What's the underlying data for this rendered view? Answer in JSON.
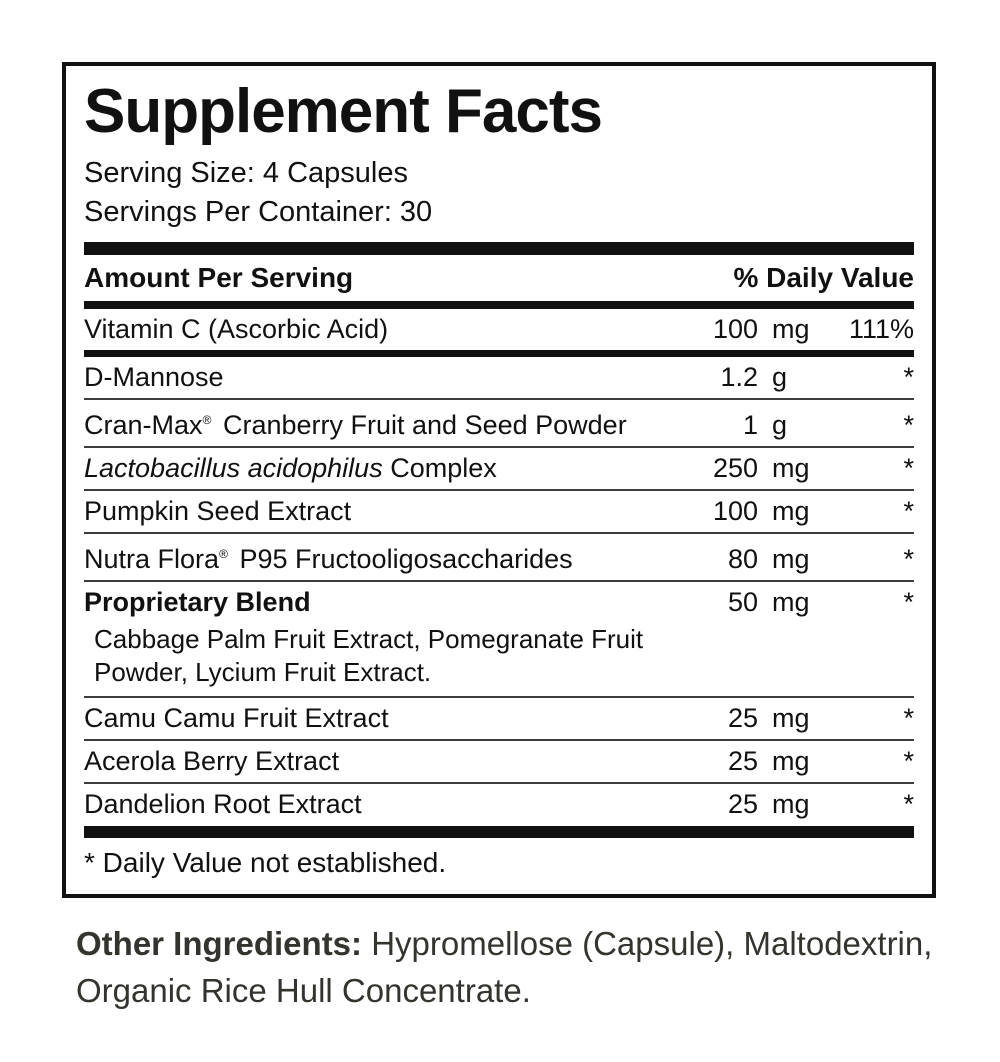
{
  "label": {
    "title": "Supplement Facts",
    "serving_size": "Serving Size: 4 Capsules",
    "servings_per_container": "Servings Per Container: 30",
    "columns": {
      "amount_header": "Amount Per Serving",
      "dv_header": "% Daily Value"
    },
    "rows": [
      {
        "segments": [
          {
            "text": "Vitamin C (Ascorbic Acid)"
          }
        ],
        "amount": "100",
        "unit": "mg",
        "dv": "111%",
        "divider_after": "thick"
      },
      {
        "segments": [
          {
            "text": "D-Mannose"
          }
        ],
        "amount": "1.2",
        "unit": "g",
        "dv": "*",
        "divider_after": "thin"
      },
      {
        "segments": [
          {
            "text": "Cran-Max"
          },
          {
            "text": "®",
            "style": "sup"
          },
          {
            "text": " Cranberry Fruit and Seed Powder"
          }
        ],
        "amount": "1",
        "unit": "g",
        "dv": "*",
        "divider_after": "thin"
      },
      {
        "segments": [
          {
            "text": "Lactobacillus acidophilus",
            "style": "italic"
          },
          {
            "text": " Complex"
          }
        ],
        "amount": "250",
        "unit": "mg",
        "dv": "*",
        "divider_after": "thin"
      },
      {
        "segments": [
          {
            "text": "Pumpkin Seed Extract"
          }
        ],
        "amount": "100",
        "unit": "mg",
        "dv": "*",
        "divider_after": "thin"
      },
      {
        "segments": [
          {
            "text": "Nutra Flora"
          },
          {
            "text": "®",
            "style": "sup"
          },
          {
            "text": " P95 Fructooligosaccharides"
          }
        ],
        "amount": "80",
        "unit": "mg",
        "dv": "*",
        "divider_after": "thin"
      },
      {
        "segments": [
          {
            "text": "Proprietary Blend",
            "style": "bold"
          }
        ],
        "amount": "50",
        "unit": "mg",
        "dv": "*",
        "components": "Cabbage Palm Fruit Extract, Pomegranate Fruit Powder, Lycium Fruit Extract.",
        "divider_after": "thin"
      },
      {
        "segments": [
          {
            "text": "Camu Camu Fruit Extract"
          }
        ],
        "amount": "25",
        "unit": "mg",
        "dv": "*",
        "divider_after": "thin"
      },
      {
        "segments": [
          {
            "text": "Acerola Berry Extract"
          }
        ],
        "amount": "25",
        "unit": "mg",
        "dv": "*",
        "divider_after": "thin"
      },
      {
        "segments": [
          {
            "text": "Dandelion Root Extract"
          }
        ],
        "amount": "25",
        "unit": "mg",
        "dv": "*",
        "divider_after": "none"
      }
    ],
    "footnote": "* Daily Value not established."
  },
  "other_ingredients": {
    "label": "Other Ingredients:",
    "text": "Hypromellose (Capsule), Maltodextrin, Organic Rice Hull Concentrate."
  },
  "colors": {
    "ink": "#111111",
    "other_ingredients_ink": "#34342e"
  }
}
